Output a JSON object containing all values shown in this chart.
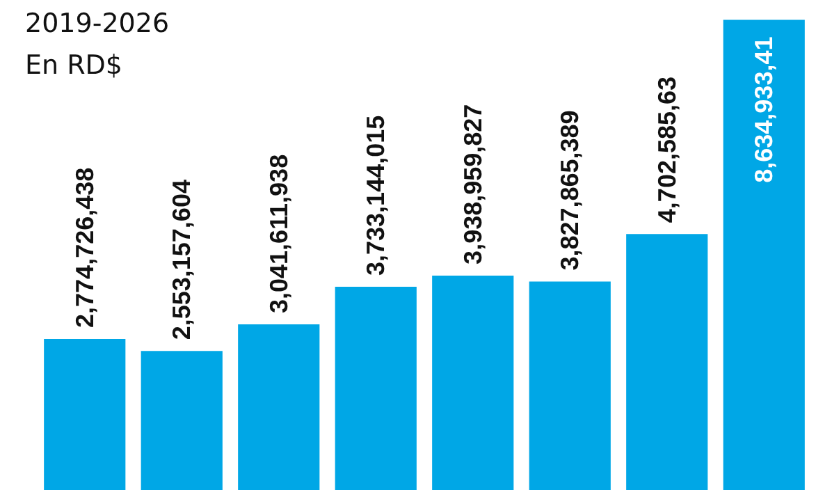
{
  "chart_data": {
    "type": "bar",
    "title": "2019-2026",
    "subtitle": "En RD$",
    "categories": [
      null,
      null,
      null,
      null,
      null,
      null,
      null,
      null
    ],
    "values": [
      2774726438,
      2553157604,
      3041611938,
      3733144015,
      3938959827,
      3827865389,
      4702585630,
      8634933410
    ],
    "value_labels": [
      "2,774,726,438",
      "2,553,157,604",
      "3,041,611,938",
      "3,733,144,015",
      "3,938,959,827",
      "3,827,865,389",
      "4,702,585,63",
      "8,634,933,41"
    ],
    "color": "#00a7e6",
    "relative": false
  }
}
